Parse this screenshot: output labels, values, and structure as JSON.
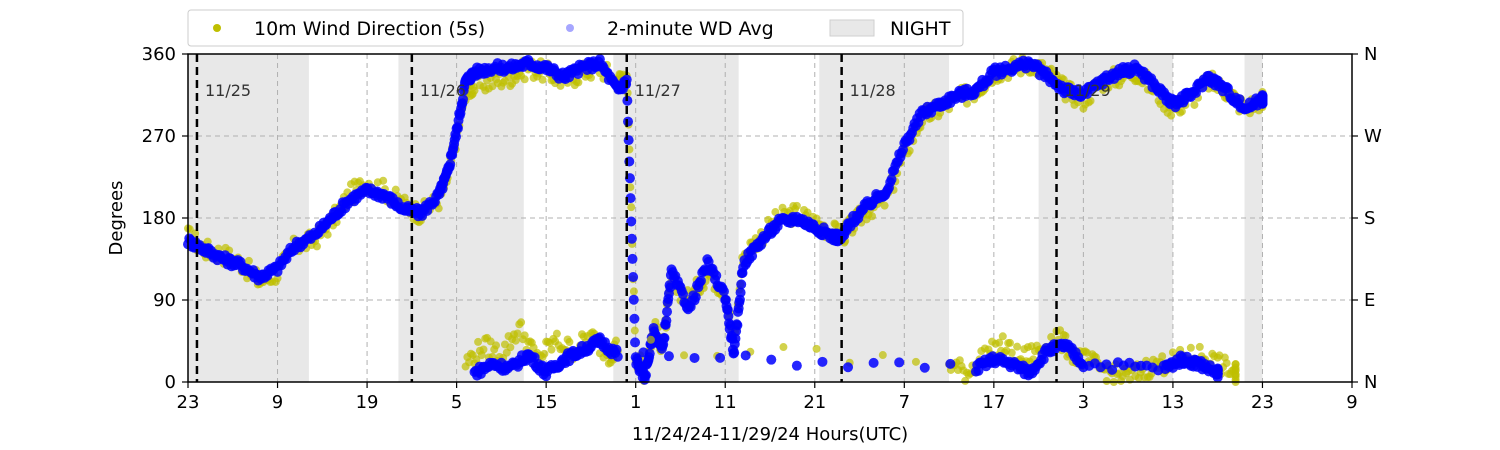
{
  "chart_data": {
    "type": "scatter",
    "xlabel": "11/24/24-11/29/24  Hours(UTC)",
    "ylabel": "Degrees",
    "x_range_hours": [
      0,
      130
    ],
    "x_tick_labels": [
      "23",
      "9",
      "19",
      "5",
      "15",
      "1",
      "11",
      "21",
      "7",
      "17",
      "3",
      "13",
      "23",
      "9"
    ],
    "x_tick_hours": [
      0,
      10,
      20,
      30,
      40,
      50,
      60,
      70,
      80,
      90,
      100,
      110,
      120,
      130
    ],
    "ylim": [
      0,
      360
    ],
    "y_ticks": [
      0,
      90,
      180,
      270,
      360
    ],
    "y_tick_labels": [
      "0",
      "90",
      "180",
      "270",
      "360"
    ],
    "y2_tick_labels": [
      "N",
      "E",
      "S",
      "W",
      "N"
    ],
    "grid": true,
    "legend": {
      "placement": "top",
      "entries": [
        {
          "label": "10m Wind Direction (5s)",
          "kind": "marker",
          "color": "#bfbf00"
        },
        {
          "label": "2-minute WD Avg",
          "kind": "marker",
          "color": "#0000ff"
        },
        {
          "label": "NIGHT",
          "kind": "patch",
          "color": "#e8e8e8"
        }
      ]
    },
    "night_periods_hours": [
      [
        0,
        13.5
      ],
      [
        23.5,
        37.5
      ],
      [
        47.5,
        61.5
      ],
      [
        70.5,
        85
      ],
      [
        95,
        110
      ],
      [
        118,
        120
      ]
    ],
    "day_markers": [
      {
        "hour": 1,
        "label": "11/25"
      },
      {
        "hour": 25,
        "label": "11/26"
      },
      {
        "hour": 49,
        "label": "11/27"
      },
      {
        "hour": 73,
        "label": "11/28"
      },
      {
        "hour": 97,
        "label": "11/29"
      }
    ],
    "series": [
      {
        "name": "10m Wind Direction (5s)",
        "color": "#bfbf00",
        "x": [
          0,
          2,
          4,
          6,
          8,
          10,
          12,
          14,
          16,
          18,
          20,
          22,
          24,
          26,
          28,
          29,
          30,
          31,
          32,
          34,
          36,
          38,
          40,
          42,
          44,
          46,
          48,
          49,
          50,
          51,
          52,
          53,
          54,
          56,
          58,
          60,
          61,
          62,
          64,
          66,
          68,
          70,
          72,
          73,
          74,
          76,
          78,
          80,
          82,
          84,
          86,
          88,
          90,
          92,
          94,
          96,
          98,
          100,
          102,
          104,
          106,
          108,
          110,
          112,
          114,
          116,
          118,
          120
        ],
        "y": [
          160,
          145,
          140,
          130,
          110,
          120,
          150,
          155,
          175,
          205,
          220,
          210,
          195,
          185,
          200,
          225,
          270,
          320,
          325,
          330,
          335,
          345,
          340,
          330,
          340,
          345,
          330,
          340,
          30,
          10,
          60,
          40,
          110,
          90,
          120,
          100,
          40,
          140,
          160,
          180,
          185,
          175,
          165,
          160,
          170,
          190,
          200,
          250,
          290,
          300,
          310,
          320,
          340,
          345,
          350,
          340,
          320,
          310,
          330,
          335,
          340,
          320,
          300,
          310,
          330,
          320,
          300,
          310
        ]
      },
      {
        "name": "2-minute WD Avg",
        "color": "#0000ff",
        "x": [
          0,
          2,
          4,
          6,
          8,
          10,
          12,
          14,
          16,
          18,
          20,
          22,
          24,
          26,
          28,
          29,
          30,
          31,
          32,
          34,
          36,
          38,
          40,
          42,
          44,
          46,
          48,
          49,
          50,
          51,
          52,
          53,
          54,
          56,
          58,
          60,
          61,
          62,
          64,
          66,
          68,
          70,
          72,
          73,
          74,
          76,
          78,
          80,
          82,
          84,
          86,
          88,
          90,
          92,
          94,
          96,
          98,
          100,
          102,
          104,
          106,
          108,
          110,
          112,
          114,
          116,
          118,
          120
        ],
        "y": [
          155,
          145,
          135,
          128,
          115,
          125,
          150,
          160,
          180,
          200,
          210,
          205,
          190,
          185,
          205,
          230,
          275,
          330,
          340,
          345,
          345,
          350,
          345,
          335,
          345,
          350,
          320,
          330,
          25,
          5,
          55,
          35,
          120,
          80,
          130,
          95,
          30,
          130,
          155,
          175,
          180,
          170,
          160,
          158,
          175,
          195,
          210,
          260,
          295,
          305,
          315,
          320,
          340,
          345,
          350,
          335,
          320,
          315,
          330,
          340,
          345,
          325,
          305,
          315,
          335,
          320,
          300,
          310
        ]
      },
      {
        "name": "10m Wind Direction (5s) lower band",
        "color": "#bfbf00",
        "x": [
          31,
          33,
          35,
          37,
          39,
          41,
          43,
          45,
          47,
          48,
          85,
          87,
          89,
          91,
          93,
          95,
          97,
          99,
          101,
          103,
          105,
          107,
          109,
          111,
          113,
          115,
          117
        ],
        "y": [
          20,
          40,
          30,
          60,
          25,
          45,
          35,
          50,
          30,
          40,
          20,
          10,
          30,
          40,
          25,
          35,
          50,
          30,
          20,
          10,
          5,
          15,
          20,
          25,
          30,
          20,
          10
        ]
      },
      {
        "name": "2-minute WD Avg lower band",
        "color": "#0000ff",
        "x": [
          32,
          34,
          36,
          38,
          40,
          42,
          44,
          46,
          48,
          88,
          90,
          92,
          94,
          96,
          98,
          100,
          109,
          111,
          113,
          115
        ],
        "y": [
          10,
          20,
          15,
          30,
          10,
          25,
          35,
          45,
          30,
          15,
          25,
          20,
          10,
          35,
          40,
          20,
          15,
          25,
          20,
          10
        ]
      }
    ]
  }
}
